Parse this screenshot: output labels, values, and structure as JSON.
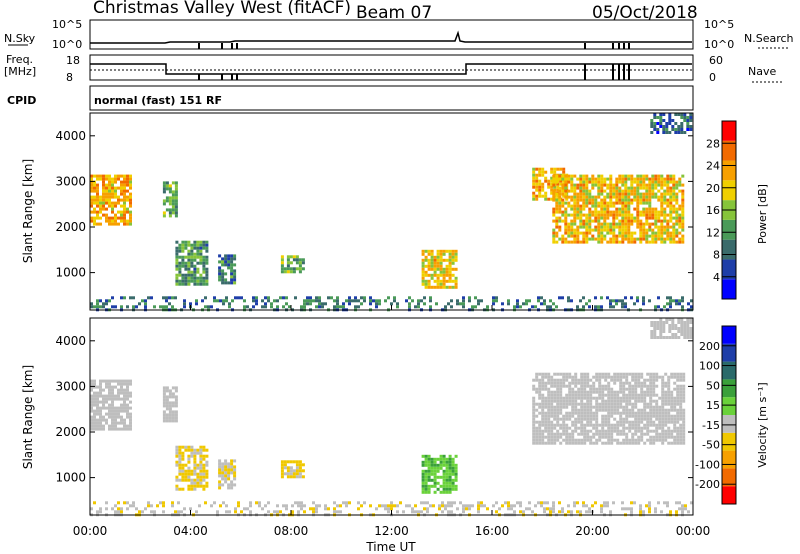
{
  "header": {
    "station": "Christmas Valley West (fitACF)",
    "beam": "Beam 07",
    "date": "05/Oct/2018",
    "cpid_label": "CPID",
    "cpid_value": "normal (fast) 151 RF"
  },
  "strip_panels": {
    "nsky": {
      "left_label": "N.Sky",
      "right_label": "N.Search",
      "left_ticks": [
        "10^5",
        "10^0"
      ],
      "right_ticks": [
        "10^5",
        "10^0"
      ]
    },
    "freq": {
      "left_label_1": "Freq.",
      "left_label_2": "[MHz]",
      "right_label": "Nave",
      "left_ticks": [
        "18",
        "8"
      ],
      "right_ticks": [
        "60",
        "0"
      ]
    }
  },
  "colors": {
    "power_scale": [
      "#0000ff",
      "#1e3ea8",
      "#3a6b6b",
      "#4a9a58",
      "#86c43a",
      "#f0d000",
      "#f7a000",
      "#f26a00",
      "#ff0000"
    ],
    "velocity_scale": [
      "#ff0000",
      "#f26a00",
      "#f7a000",
      "#f0c800",
      "#bebebe",
      "#6ad23a",
      "#3aa03a",
      "#2a6a6a",
      "#1e3ea8",
      "#0000ff"
    ],
    "ground_scatter": "#bebebe"
  },
  "chart_data": [
    {
      "type": "heatmap",
      "ylabel": "Slant Range [km]",
      "xlabel": "Time UT",
      "x_ticks": [
        "00:00",
        "04:00",
        "08:00",
        "12:00",
        "16:00",
        "20:00",
        "00:00"
      ],
      "x_range_hours": [
        0,
        24
      ],
      "y_ticks": [
        "1000",
        "2000",
        "3000",
        "4000"
      ],
      "y_range_km": [
        180,
        4500
      ],
      "colorbar": {
        "label": "Power [dB]",
        "ticks": [
          "4",
          "8",
          "12",
          "16",
          "20",
          "24",
          "28"
        ],
        "range": [
          0,
          32
        ]
      },
      "regions": [
        {
          "t0": 0.0,
          "t1": 1.6,
          "r0": 2050,
          "r1": 3150,
          "value": 22
        },
        {
          "t0": 2.9,
          "t1": 3.4,
          "r0": 2250,
          "r1": 3000,
          "value": 14
        },
        {
          "t0": 3.4,
          "t1": 4.6,
          "r0": 750,
          "r1": 1700,
          "value": 12
        },
        {
          "t0": 5.1,
          "t1": 5.8,
          "r0": 800,
          "r1": 1400,
          "value": 10
        },
        {
          "t0": 7.6,
          "t1": 8.5,
          "r0": 1050,
          "r1": 1380,
          "value": 14
        },
        {
          "t0": 13.2,
          "t1": 14.6,
          "r0": 700,
          "r1": 1500,
          "value": 20
        },
        {
          "t0": 17.6,
          "t1": 19.0,
          "r0": 2600,
          "r1": 3300,
          "value": 22
        },
        {
          "t0": 18.4,
          "t1": 23.6,
          "r0": 1700,
          "r1": 3150,
          "value": 21
        },
        {
          "t0": 22.3,
          "t1": 23.9,
          "r0": 4100,
          "r1": 4500,
          "value": 8
        },
        {
          "t0": 0.0,
          "t1": 24.0,
          "r0": 200,
          "r1": 480,
          "value": 9
        }
      ]
    },
    {
      "type": "heatmap",
      "ylabel": "Slant Range [km]",
      "xlabel": "Time UT",
      "x_ticks": [
        "00:00",
        "04:00",
        "08:00",
        "12:00",
        "16:00",
        "20:00",
        "00:00"
      ],
      "x_range_hours": [
        0,
        24
      ],
      "y_ticks": [
        "1000",
        "2000",
        "3000",
        "4000"
      ],
      "y_range_km": [
        180,
        4500
      ],
      "colorbar": {
        "label": "Velocity [m s⁻¹]",
        "ticks": [
          "200",
          "100",
          "50",
          "15",
          "-15",
          "-50",
          "-100",
          "-200"
        ],
        "range": [
          -250,
          250
        ]
      },
      "regions": [
        {
          "t0": 0.0,
          "t1": 1.6,
          "r0": 2050,
          "r1": 3150,
          "value": 0,
          "ground_scatter": true
        },
        {
          "t0": 2.9,
          "t1": 3.4,
          "r0": 2250,
          "r1": 3000,
          "value": 0,
          "ground_scatter": true
        },
        {
          "t0": 3.4,
          "t1": 4.6,
          "r0": 750,
          "r1": 1700,
          "value": -60
        },
        {
          "t0": 5.1,
          "t1": 5.8,
          "r0": 800,
          "r1": 1400,
          "value": -40
        },
        {
          "t0": 7.6,
          "t1": 8.5,
          "r0": 1050,
          "r1": 1380,
          "value": -60
        },
        {
          "t0": 13.2,
          "t1": 14.6,
          "r0": 700,
          "r1": 1500,
          "value": 40
        },
        {
          "t0": 17.6,
          "t1": 23.6,
          "r0": 1750,
          "r1": 3300,
          "value": 0,
          "ground_scatter": true
        },
        {
          "t0": 22.3,
          "t1": 23.9,
          "r0": 4100,
          "r1": 4500,
          "value": 0,
          "ground_scatter": true
        },
        {
          "t0": 0.0,
          "t1": 24.0,
          "r0": 200,
          "r1": 480,
          "value": -35
        }
      ]
    }
  ]
}
